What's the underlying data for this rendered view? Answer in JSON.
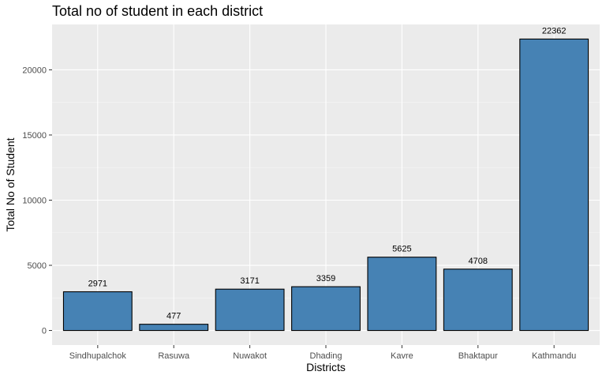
{
  "chart_data": {
    "type": "bar",
    "title": "Total no of student in each district",
    "xlabel": "Districts",
    "ylabel": "Total No of Student",
    "categories": [
      "Sindhupalchok",
      "Rasuwa",
      "Nuwakot",
      "Dhading",
      "Kavre",
      "Bhaktapur",
      "Kathmandu"
    ],
    "values": [
      2971,
      477,
      3171,
      3359,
      5625,
      4708,
      22362
    ],
    "data_labels": [
      "2971",
      "477",
      "3171",
      "3359",
      "5625",
      "4708",
      "22362"
    ],
    "yticks": [
      0,
      5000,
      10000,
      15000,
      20000
    ],
    "ytick_labels": [
      "0",
      "5000",
      "10000",
      "15000",
      "20000"
    ],
    "ylim": [
      -1118,
      23480
    ],
    "grid": true,
    "legend": "none",
    "colors": {
      "bar_fill": "#4682B4",
      "bar_stroke": "#000000",
      "panel_background": "#EBEBEB",
      "grid_major": "#FFFFFF",
      "grid_minor": "#F5F5F5"
    }
  }
}
